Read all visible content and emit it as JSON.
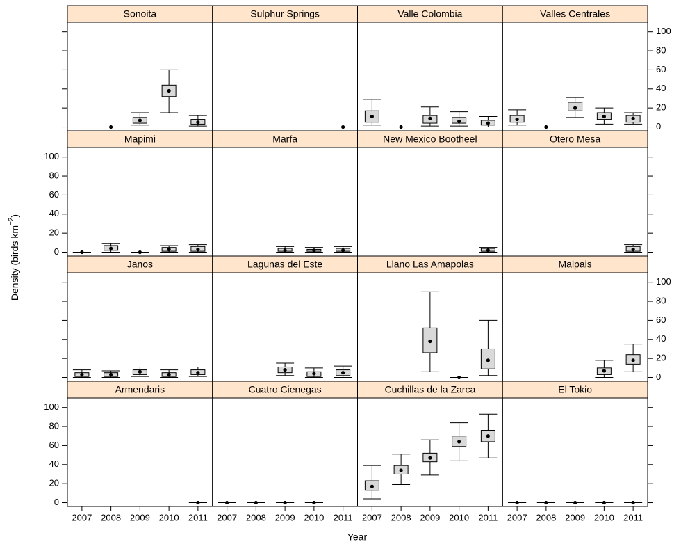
{
  "chart_data": {
    "type": "box",
    "xlabel": "Year",
    "ylabel": {
      "base": "Density (birds km",
      "exponent": "−2",
      "close": ")"
    },
    "categories": [
      "2007",
      "2008",
      "2009",
      "2010",
      "2011"
    ],
    "ylim": [
      -4,
      110
    ],
    "yticks": [
      0,
      20,
      40,
      60,
      80,
      100
    ],
    "strip_color": "#ffe5cc",
    "box_color": "#d9d9d9",
    "panels": [
      {
        "title": "Sonoita",
        "whisker_low": [
          null,
          0,
          2,
          15,
          1
        ],
        "q1": [
          null,
          0,
          4,
          32,
          3
        ],
        "q3": [
          null,
          0,
          10,
          44,
          8
        ],
        "whisker_high": [
          null,
          0,
          15,
          60,
          12
        ],
        "point": [
          null,
          0,
          7,
          38,
          5
        ]
      },
      {
        "title": "Sulphur Springs",
        "whisker_low": [
          null,
          null,
          null,
          null,
          0
        ],
        "q1": [
          null,
          null,
          null,
          null,
          0
        ],
        "q3": [
          null,
          null,
          null,
          null,
          0
        ],
        "whisker_high": [
          null,
          null,
          null,
          null,
          0
        ],
        "point": [
          null,
          null,
          null,
          null,
          0
        ]
      },
      {
        "title": "Valle Colombia",
        "whisker_low": [
          2,
          0,
          1,
          1,
          0
        ],
        "q1": [
          5,
          0,
          4,
          4,
          2
        ],
        "q3": [
          17,
          0,
          12,
          10,
          7
        ],
        "whisker_high": [
          29,
          0,
          21,
          16,
          11
        ],
        "point": [
          11,
          0,
          9,
          6,
          4
        ]
      },
      {
        "title": "Valles Centrales",
        "whisker_low": [
          2,
          0,
          10,
          3,
          3
        ],
        "q1": [
          5,
          0,
          17,
          8,
          5
        ],
        "q3": [
          12,
          0,
          26,
          15,
          12
        ],
        "whisker_high": [
          18,
          0,
          31,
          20,
          15
        ],
        "point": [
          8,
          0,
          20,
          11,
          9
        ]
      },
      {
        "title": "Mapimi",
        "whisker_low": [
          0,
          0,
          0,
          0,
          0
        ],
        "q1": [
          0,
          2,
          0,
          1,
          1
        ],
        "q3": [
          0,
          7,
          0,
          5,
          6
        ],
        "whisker_high": [
          0,
          9,
          0,
          7,
          8
        ],
        "point": [
          0,
          4,
          0,
          3,
          3
        ]
      },
      {
        "title": "Marfa",
        "whisker_low": [
          null,
          null,
          0,
          0,
          0
        ],
        "q1": [
          null,
          null,
          1,
          1,
          1
        ],
        "q3": [
          null,
          null,
          4,
          3,
          4
        ],
        "whisker_high": [
          null,
          null,
          6,
          5,
          6
        ],
        "point": [
          null,
          null,
          2,
          2,
          2
        ]
      },
      {
        "title": "New Mexico Bootheel",
        "whisker_low": [
          null,
          null,
          null,
          null,
          0
        ],
        "q1": [
          null,
          null,
          null,
          null,
          1
        ],
        "q3": [
          null,
          null,
          null,
          null,
          4
        ],
        "whisker_high": [
          null,
          null,
          null,
          null,
          5
        ],
        "point": [
          null,
          null,
          null,
          null,
          2
        ]
      },
      {
        "title": "Otero Mesa",
        "whisker_low": [
          null,
          null,
          null,
          null,
          0
        ],
        "q1": [
          null,
          null,
          null,
          null,
          1
        ],
        "q3": [
          null,
          null,
          null,
          null,
          6
        ],
        "whisker_high": [
          null,
          null,
          null,
          null,
          8
        ],
        "point": [
          null,
          null,
          null,
          null,
          3
        ]
      },
      {
        "title": "Janos",
        "whisker_low": [
          0,
          0,
          1,
          0,
          1
        ],
        "q1": [
          1,
          1,
          3,
          1,
          3
        ],
        "q3": [
          5,
          5,
          8,
          5,
          8
        ],
        "whisker_high": [
          8,
          7,
          11,
          8,
          11
        ],
        "point": [
          3,
          3,
          6,
          3,
          5
        ]
      },
      {
        "title": "Lagunas del Este",
        "whisker_low": [
          null,
          null,
          2,
          0,
          0
        ],
        "q1": [
          null,
          null,
          5,
          1,
          2
        ],
        "q3": [
          null,
          null,
          11,
          6,
          8
        ],
        "whisker_high": [
          null,
          null,
          15,
          10,
          12
        ],
        "point": [
          null,
          null,
          8,
          4,
          5
        ]
      },
      {
        "title": "Llano Las Amapolas",
        "whisker_low": [
          null,
          null,
          6,
          0,
          2
        ],
        "q1": [
          null,
          null,
          26,
          0,
          9
        ],
        "q3": [
          null,
          null,
          52,
          0,
          30
        ],
        "whisker_high": [
          null,
          null,
          90,
          0,
          60
        ],
        "point": [
          null,
          null,
          38,
          0,
          18
        ]
      },
      {
        "title": "Malpais",
        "whisker_low": [
          null,
          null,
          null,
          0,
          6
        ],
        "q1": [
          null,
          null,
          null,
          3,
          14
        ],
        "q3": [
          null,
          null,
          null,
          10,
          24
        ],
        "whisker_high": [
          null,
          null,
          null,
          18,
          35
        ],
        "point": [
          null,
          null,
          null,
          7,
          18
        ]
      },
      {
        "title": "Armendaris",
        "whisker_low": [
          null,
          null,
          null,
          null,
          0
        ],
        "q1": [
          null,
          null,
          null,
          null,
          0
        ],
        "q3": [
          null,
          null,
          null,
          null,
          0
        ],
        "whisker_high": [
          null,
          null,
          null,
          null,
          0
        ],
        "point": [
          null,
          null,
          null,
          null,
          0
        ]
      },
      {
        "title": "Cuatro Cienegas",
        "whisker_low": [
          0,
          0,
          0,
          0,
          null
        ],
        "q1": [
          0,
          0,
          0,
          0,
          null
        ],
        "q3": [
          0,
          0,
          0,
          0,
          null
        ],
        "whisker_high": [
          0,
          0,
          0,
          0,
          null
        ],
        "point": [
          0,
          0,
          0,
          0,
          null
        ]
      },
      {
        "title": "Cuchillas de la Zarca",
        "whisker_low": [
          4,
          19,
          29,
          44,
          47
        ],
        "q1": [
          13,
          30,
          43,
          59,
          64
        ],
        "q3": [
          23,
          39,
          52,
          70,
          76
        ],
        "whisker_high": [
          39,
          51,
          66,
          84,
          93
        ],
        "point": [
          17,
          34,
          47,
          64,
          70
        ]
      },
      {
        "title": "El Tokio",
        "whisker_low": [
          0,
          0,
          0,
          0,
          0
        ],
        "q1": [
          0,
          0,
          0,
          0,
          0
        ],
        "q3": [
          0,
          0,
          0,
          0,
          0
        ],
        "whisker_high": [
          0,
          0,
          0,
          0,
          0
        ],
        "point": [
          0,
          0,
          0,
          0,
          0
        ]
      }
    ]
  }
}
